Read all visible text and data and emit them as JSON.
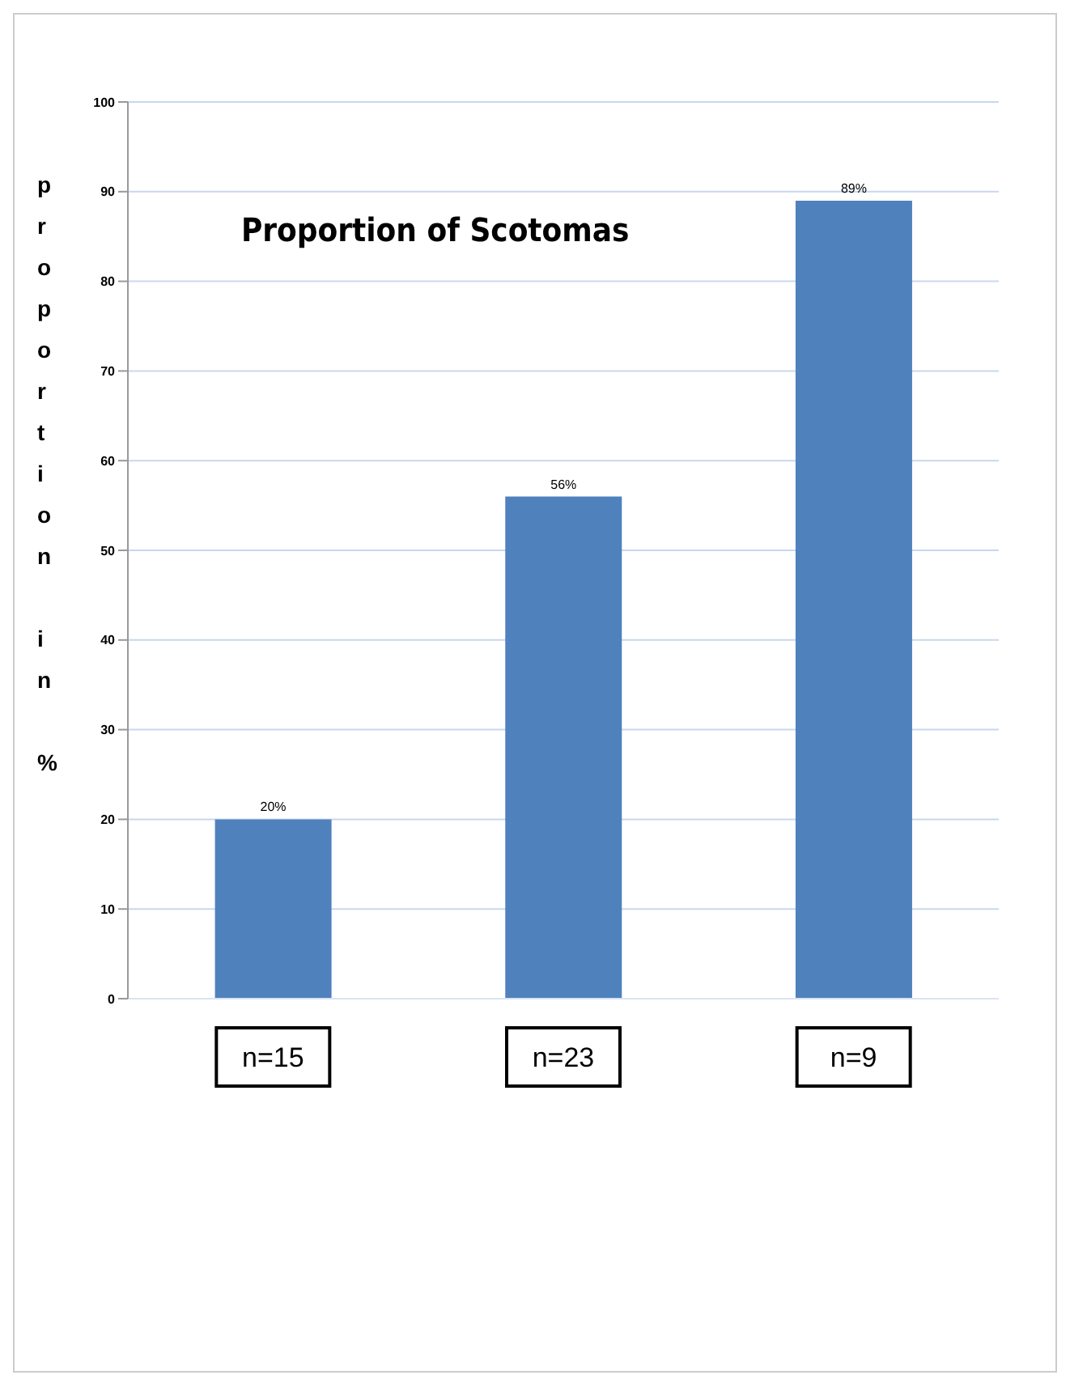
{
  "chart_data": {
    "type": "bar",
    "title": "Proportion of Scotomas",
    "ylabel": "proportion in %",
    "categories": [
      "n=15",
      "n=23",
      "n=9"
    ],
    "values": [
      20,
      56,
      89
    ],
    "value_labels": [
      "20%",
      "56%",
      "89%"
    ],
    "color": "#4f81bd",
    "ylim": [
      0,
      100
    ],
    "yticks": [
      0,
      10,
      20,
      30,
      40,
      50,
      60,
      70,
      80,
      90,
      100
    ],
    "grid": "y"
  }
}
